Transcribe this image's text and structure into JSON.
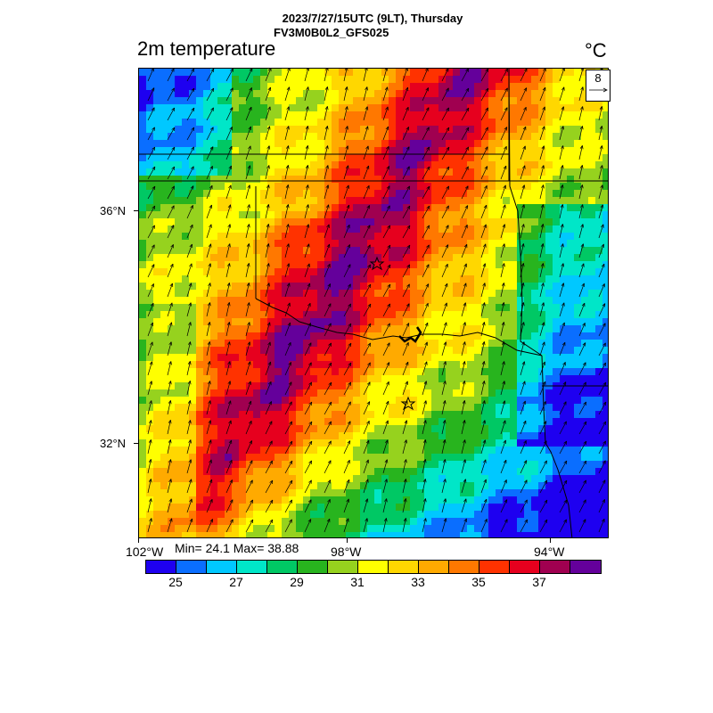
{
  "header": {
    "line1": "2023/7/27/15UTC (9LT), Thursday",
    "line2": "FV3M0B0L2_GFS025"
  },
  "map": {
    "variable_title": "2m temperature",
    "units": "°C",
    "vector_reference": "8",
    "lat_labels": [
      "36°N",
      "32°N"
    ],
    "lon_labels": [
      "102°W",
      "98°W",
      "94°W"
    ],
    "min_max": "Min= 24.1 Max= 38.88",
    "field_min": 24.1,
    "field_max": 38.88,
    "wind_direction": "southwesterly",
    "station_markers": 2
  },
  "colorbar": {
    "colors": [
      "#1e00f0",
      "#0a6eff",
      "#00c8ff",
      "#00e6c8",
      "#00c864",
      "#28b41e",
      "#96d21e",
      "#ffff00",
      "#ffd700",
      "#ffaa00",
      "#ff7800",
      "#ff3200",
      "#e6001e",
      "#a00050",
      "#64009b"
    ],
    "labels": [
      "25",
      "27",
      "29",
      "31",
      "33",
      "35",
      "37"
    ]
  }
}
